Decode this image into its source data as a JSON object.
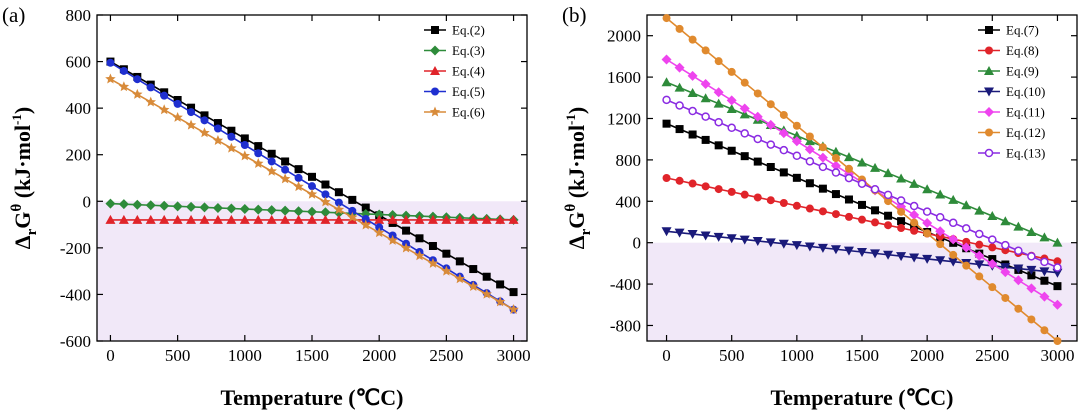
{
  "chart_data": [
    {
      "type": "line",
      "panel_label": "(a)",
      "xlabel": "Temperature (℃C)",
      "ylabel_parts": [
        "Δ",
        "r",
        "G",
        "θ",
        "  (kJ·mol",
        "-1",
        ")"
      ],
      "xlim": [
        -100,
        3100
      ],
      "ylim": [
        -600,
        800
      ],
      "xticks": [
        0,
        500,
        1000,
        1500,
        2000,
        2500,
        3000
      ],
      "xtick_labels": [
        "0",
        "500",
        "1000",
        "1500",
        "2000",
        "2500",
        "3000"
      ],
      "yticks": [
        -600,
        -400,
        -200,
        0,
        200,
        400,
        600,
        800
      ],
      "ytick_labels": [
        "-600",
        "-400",
        "-200",
        "0",
        "200",
        "400",
        "600",
        "800"
      ],
      "negative_region_color": "#f1e8f8",
      "legend_position": "top-right",
      "x": [
        0,
        100,
        200,
        300,
        400,
        500,
        600,
        700,
        800,
        900,
        1000,
        1100,
        1200,
        1300,
        1400,
        1500,
        1600,
        1700,
        1800,
        1900,
        2000,
        2100,
        2200,
        2300,
        2400,
        2500,
        2600,
        2700,
        2800,
        2900,
        3000
      ],
      "series": [
        {
          "name": "Eq.(2)",
          "color": "#000000",
          "marker": "square",
          "start": 600,
          "end": -390
        },
        {
          "name": "Eq.(3)",
          "color": "#2e8b3a",
          "marker": "diamond",
          "start": -10,
          "end": -80
        },
        {
          "name": "Eq.(4)",
          "color": "#e0242a",
          "marker": "triangle-up",
          "start": -80,
          "end": -80
        },
        {
          "name": "Eq.(5)",
          "color": "#1f2fd0",
          "marker": "circle",
          "start": 595,
          "end": -465
        },
        {
          "name": "Eq.(6)",
          "color": "#d88b3a",
          "marker": "star",
          "start": 525,
          "end": -465
        }
      ]
    },
    {
      "type": "line",
      "panel_label": "(b)",
      "xlabel": "Temperature (℃C)",
      "ylabel_parts": [
        "Δ",
        "r",
        "G",
        "θ",
        "  (kJ·mol",
        "-1",
        ")"
      ],
      "xlim": [
        -150,
        3150
      ],
      "ylim": [
        -950,
        2200
      ],
      "xticks": [
        0,
        500,
        1000,
        1500,
        2000,
        2500,
        3000
      ],
      "xtick_labels": [
        "0",
        "500",
        "1000",
        "1500",
        "2000",
        "2500",
        "3000"
      ],
      "yticks": [
        -800,
        -400,
        0,
        400,
        800,
        1200,
        1600,
        2000
      ],
      "ytick_labels": [
        "-800",
        "-400",
        "0",
        "400",
        "800",
        "1200",
        "1600",
        "2000"
      ],
      "negative_region_color": "#f1e8f8",
      "legend_position": "top-right",
      "x": [
        0,
        100,
        200,
        300,
        400,
        500,
        600,
        700,
        800,
        900,
        1000,
        1100,
        1200,
        1300,
        1400,
        1500,
        1600,
        1700,
        1800,
        1900,
        2000,
        2100,
        2200,
        2300,
        2400,
        2500,
        2600,
        2700,
        2800,
        2900,
        3000
      ],
      "series": [
        {
          "name": "Eq.(7)",
          "color": "#000000",
          "marker": "square",
          "start": 1150,
          "end": -420
        },
        {
          "name": "Eq.(8)",
          "color": "#e0242a",
          "marker": "circle",
          "start": 625,
          "end": -180
        },
        {
          "name": "Eq.(9)",
          "color": "#2e8b3a",
          "marker": "triangle-up",
          "start": 1550,
          "end": 0
        },
        {
          "name": "Eq.(10)",
          "color": "#1a1a7a",
          "marker": "triangle-down",
          "start": 110,
          "end": -290
        },
        {
          "name": "Eq.(11)",
          "color": "#ee44ee",
          "marker": "diamond",
          "start": 1770,
          "end": -600
        },
        {
          "name": "Eq.(12)",
          "color": "#e08a2e",
          "marker": "circle",
          "start": 2170,
          "end": -950
        },
        {
          "name": "Eq.(13)",
          "color": "#8a2be2",
          "marker": "circle-open",
          "start": 1380,
          "end": -240
        }
      ]
    }
  ]
}
